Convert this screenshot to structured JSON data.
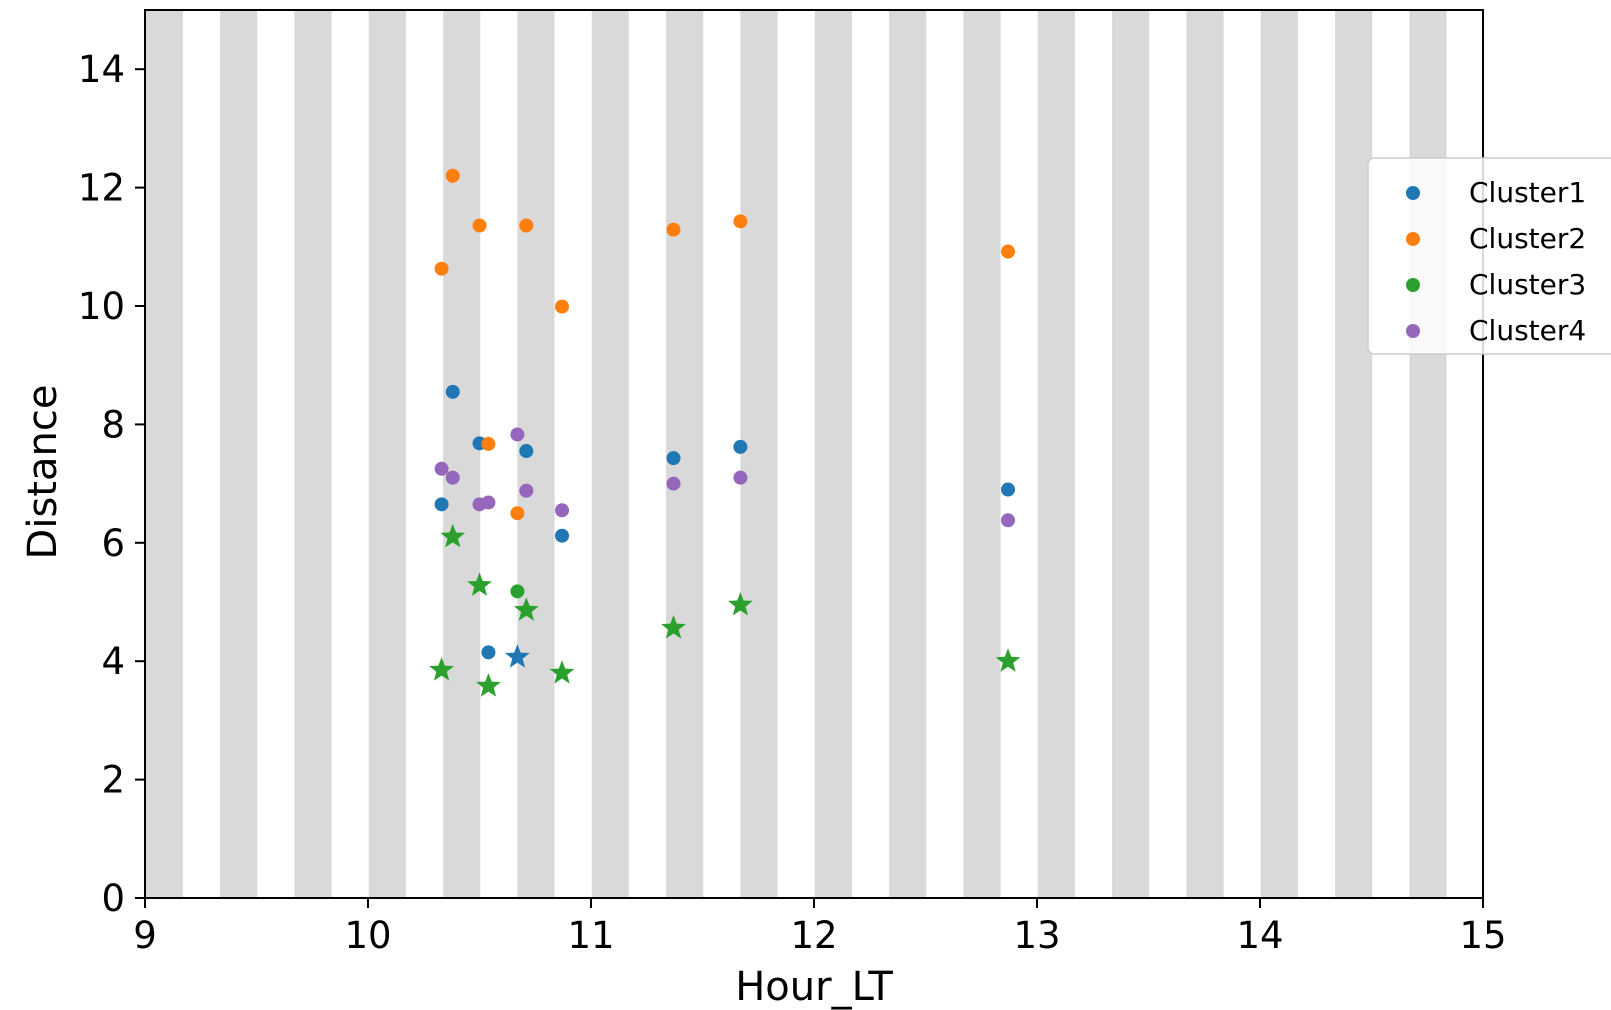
{
  "chart_data": {
    "type": "scatter",
    "xlabel": "Hour_LT",
    "ylabel": "Distance",
    "xlim": [
      9,
      15
    ],
    "ylim": [
      0,
      15
    ],
    "xticks": [
      9,
      10,
      11,
      12,
      13,
      14,
      15
    ],
    "yticks": [
      0,
      2,
      4,
      6,
      8,
      10,
      12,
      14
    ],
    "grid": false,
    "background": "alternating vertical grey stripes",
    "stripe_color": "#d9d9d9",
    "legend_position": "right",
    "series": [
      {
        "name": "Cluster1",
        "color": "#1f77b4",
        "points": [
          {
            "x": 10.33,
            "y": 6.65
          },
          {
            "x": 10.38,
            "y": 8.55
          },
          {
            "x": 10.5,
            "y": 7.68
          },
          {
            "x": 10.54,
            "y": 4.15
          },
          {
            "x": 10.71,
            "y": 7.55
          },
          {
            "x": 10.87,
            "y": 6.12
          },
          {
            "x": 11.37,
            "y": 7.43
          },
          {
            "x": 11.67,
            "y": 7.62
          },
          {
            "x": 12.87,
            "y": 6.9
          }
        ],
        "highlighted": [
          {
            "x": 10.67,
            "y": 4.07
          }
        ]
      },
      {
        "name": "Cluster2",
        "color": "#ff7f0e",
        "points": [
          {
            "x": 10.33,
            "y": 10.63
          },
          {
            "x": 10.38,
            "y": 12.2
          },
          {
            "x": 10.5,
            "y": 11.36
          },
          {
            "x": 10.54,
            "y": 7.67
          },
          {
            "x": 10.67,
            "y": 6.5
          },
          {
            "x": 10.71,
            "y": 11.36
          },
          {
            "x": 10.87,
            "y": 9.99
          },
          {
            "x": 11.37,
            "y": 11.29
          },
          {
            "x": 11.67,
            "y": 11.43
          },
          {
            "x": 12.87,
            "y": 10.92
          }
        ],
        "highlighted": []
      },
      {
        "name": "Cluster3",
        "color": "#2ca02c",
        "points": [
          {
            "x": 10.67,
            "y": 5.18
          }
        ],
        "highlighted": [
          {
            "x": 10.33,
            "y": 3.85
          },
          {
            "x": 10.38,
            "y": 6.1
          },
          {
            "x": 10.5,
            "y": 5.28
          },
          {
            "x": 10.54,
            "y": 3.58
          },
          {
            "x": 10.71,
            "y": 4.86
          },
          {
            "x": 10.87,
            "y": 3.8
          },
          {
            "x": 11.37,
            "y": 4.56
          },
          {
            "x": 11.67,
            "y": 4.95
          },
          {
            "x": 12.87,
            "y": 4.0
          }
        ]
      },
      {
        "name": "Cluster4",
        "color": "#9467bd",
        "points": [
          {
            "x": 10.33,
            "y": 7.25
          },
          {
            "x": 10.38,
            "y": 7.1
          },
          {
            "x": 10.5,
            "y": 6.65
          },
          {
            "x": 10.54,
            "y": 6.68
          },
          {
            "x": 10.67,
            "y": 7.83
          },
          {
            "x": 10.71,
            "y": 6.88
          },
          {
            "x": 10.87,
            "y": 6.55
          },
          {
            "x": 11.37,
            "y": 7.0
          },
          {
            "x": 11.67,
            "y": 7.1
          },
          {
            "x": 12.87,
            "y": 6.38
          }
        ],
        "highlighted": []
      }
    ]
  }
}
